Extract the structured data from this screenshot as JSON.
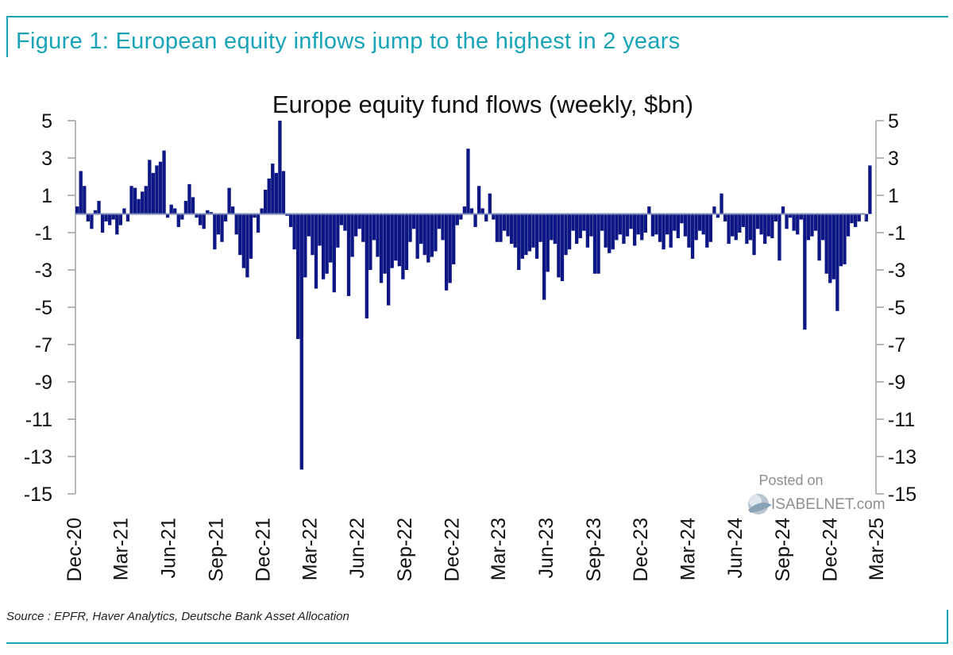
{
  "figure_title": "Figure 1: European equity inflows jump to the highest in 2 years",
  "source": "Source : EPFR, Haver Analytics, Deutsche Bank Asset Allocation",
  "watermark": {
    "line1": "Posted on",
    "line2": "ISABELNET.com"
  },
  "colors": {
    "accent": "#19a3b8",
    "bars": "#0c1785",
    "zero_line": "#7f8bb7",
    "axis": "#a0a0a0"
  },
  "chart_data": {
    "type": "bar",
    "title": "Europe equity fund flows (weekly, $bn)",
    "xlabel": "",
    "ylabel": "",
    "ylim": [
      -15,
      5
    ],
    "yticks": [
      5,
      3,
      1,
      -1,
      -3,
      -5,
      -7,
      -9,
      -11,
      -13,
      -15
    ],
    "ytick_labels": [
      "5",
      "3",
      "1",
      "-1",
      "-3",
      "-5",
      "-7",
      "-9",
      "-11",
      "-13",
      "-15"
    ],
    "secondary_y_axis": true,
    "x_labels": [
      "Dec-20",
      "Mar-21",
      "Jun-21",
      "Sep-21",
      "Dec-21",
      "Mar-22",
      "Jun-22",
      "Sep-22",
      "Dec-22",
      "Mar-23",
      "Jun-23",
      "Sep-23",
      "Dec-23",
      "Mar-24",
      "Jun-24",
      "Sep-24",
      "Dec-24",
      "Mar-25"
    ],
    "x_start": "2020-12-04",
    "x_end": "2025-03-01",
    "frequency": "weekly",
    "grid": false,
    "values": [
      0.4,
      2.3,
      1.5,
      -0.4,
      -0.8,
      0.2,
      0.7,
      -1.0,
      -0.4,
      -0.6,
      -0.3,
      -1.1,
      -0.6,
      0.3,
      -0.4,
      1.5,
      1.4,
      0.8,
      1.2,
      1.5,
      2.9,
      2.2,
      2.6,
      2.8,
      3.4,
      -0.2,
      0.5,
      0.3,
      -0.7,
      -0.3,
      0.7,
      1.6,
      0.9,
      -0.2,
      -0.6,
      -0.8,
      0.2,
      0.1,
      -1.9,
      -1.1,
      -1.5,
      -0.4,
      1.4,
      0.4,
      -1.1,
      -2.2,
      -2.9,
      -3.4,
      -2.4,
      -0.2,
      -1.0,
      0.3,
      1.3,
      1.9,
      2.7,
      2.2,
      5.0,
      2.3,
      -0.1,
      -0.7,
      -1.9,
      -6.7,
      -13.7,
      -3.4,
      -1.2,
      -2.2,
      -4.0,
      -1.7,
      -3.5,
      -3.2,
      -2.6,
      -4.2,
      -1.8,
      -0.6,
      -0.9,
      -4.4,
      -2.3,
      -1.2,
      -0.8,
      -1.5,
      -5.6,
      -3.0,
      -1.4,
      -2.3,
      -3.7,
      -3.2,
      -4.9,
      -2.9,
      -2.5,
      -2.8,
      -3.5,
      -3.0,
      -1.5,
      -0.8,
      -2.4,
      -1.6,
      -2.2,
      -2.6,
      -2.3,
      -2.0,
      -0.8,
      -1.4,
      -4.1,
      -3.7,
      -2.7,
      -0.6,
      -0.3,
      0.4,
      3.5,
      0.3,
      -0.7,
      1.5,
      0.3,
      -0.4,
      1.1,
      -0.3,
      -1.5,
      -1.5,
      -0.9,
      -1.2,
      -1.6,
      -1.8,
      -3.0,
      -2.4,
      -2.2,
      -2.0,
      -1.8,
      -2.4,
      -1.5,
      -4.6,
      -3.1,
      -1.4,
      -1.6,
      -3.4,
      -3.6,
      -2.2,
      -1.9,
      -0.9,
      -1.6,
      -1.3,
      -0.9,
      -1.8,
      -1.2,
      -3.2,
      -3.2,
      -0.9,
      -1.8,
      -2.1,
      -1.9,
      -1.4,
      -1.1,
      -1.6,
      -1.2,
      -0.8,
      -1.7,
      -1.1,
      -1.4,
      -1.0,
      0.4,
      -1.2,
      -1.1,
      -1.5,
      -1.9,
      -1.1,
      -1.8,
      -0.9,
      -1.3,
      -0.5,
      -1.2,
      -1.8,
      -2.4,
      -1.4,
      -0.9,
      -1.1,
      -1.8,
      -1.5,
      0.4,
      -0.2,
      1.1,
      -0.4,
      -1.6,
      -1.2,
      -1.4,
      -1.0,
      -0.7,
      -1.6,
      -1.4,
      -2.2,
      -0.8,
      -1.1,
      -1.6,
      -1.2,
      -1.3,
      -0.4,
      -2.5,
      0.4,
      -0.8,
      -0.2,
      -0.9,
      -1.1,
      -0.3,
      -6.2,
      -1.4,
      -1.2,
      -0.9,
      -2.5,
      -1.4,
      -3.2,
      -3.7,
      -3.5,
      -5.2,
      -2.8,
      -2.7,
      -1.2,
      -0.5,
      -0.7,
      -0.4,
      0.0,
      -0.4,
      2.6
    ]
  }
}
